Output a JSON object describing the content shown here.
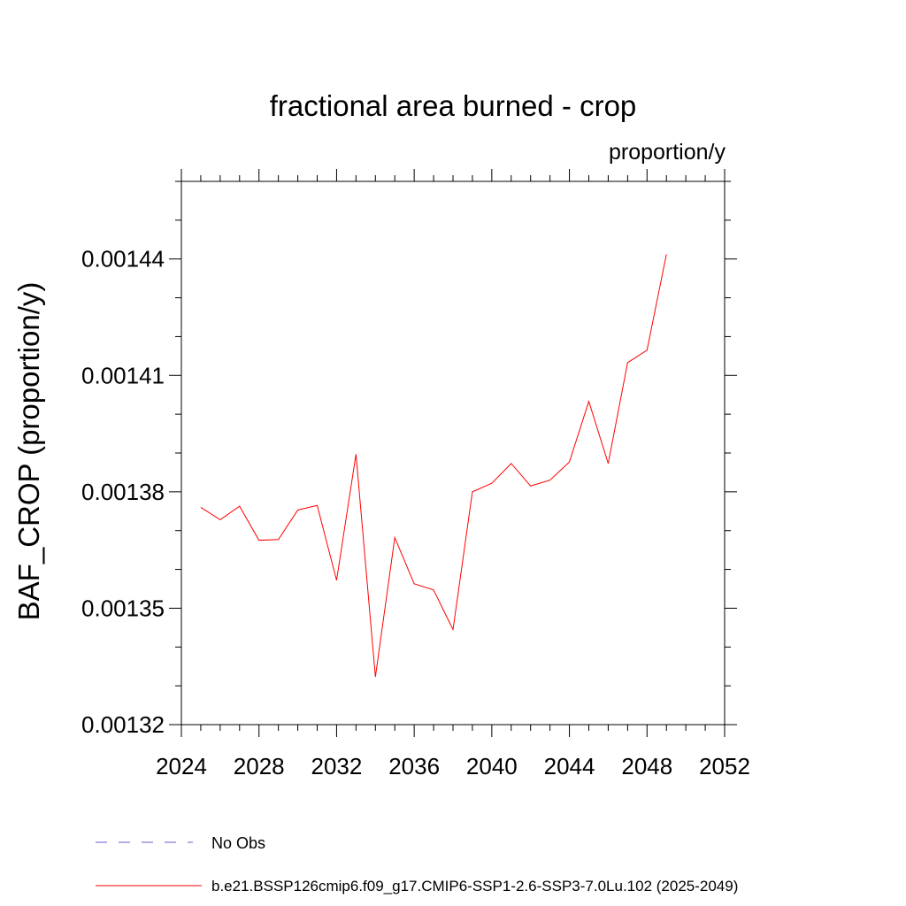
{
  "chart_data": {
    "type": "line",
    "title": "fractional area burned - crop",
    "units_label": "proportion/y",
    "ylabel": "BAF_CROP  (proportion/y)",
    "xlabel": "",
    "xlim": [
      2024,
      2052
    ],
    "ylim": [
      0.00132,
      0.00146
    ],
    "x_ticks": [
      2024,
      2028,
      2032,
      2036,
      2040,
      2044,
      2048,
      2052
    ],
    "x_tick_labels": [
      "2024",
      "2028",
      "2032",
      "2036",
      "2040",
      "2044",
      "2048",
      "2052"
    ],
    "y_ticks": [
      0.00132,
      0.00135,
      0.00138,
      0.00141,
      0.00144
    ],
    "y_tick_labels": [
      "0.00132",
      "0.00135",
      "0.00138",
      "0.00141",
      "0.00144"
    ],
    "grid": false,
    "series": [
      {
        "name": "b.e21.BSSP126cmip6.f09_g17.CMIP6-SSP1-2.6-SSP3-7.0Lu.102 (2025-2049)",
        "color": "#ff0000",
        "x": [
          2025,
          2026,
          2027,
          2028,
          2029,
          2030,
          2031,
          2032,
          2033,
          2034,
          2035,
          2036,
          2037,
          2038,
          2039,
          2040,
          2041,
          2042,
          2043,
          2044,
          2045,
          2046,
          2047,
          2048,
          2049
        ],
        "y": [
          0.001376,
          0.0013728,
          0.0013763,
          0.0013675,
          0.0013677,
          0.0013753,
          0.0013765,
          0.0013572,
          0.0013897,
          0.0013323,
          0.0013682,
          0.0013563,
          0.0013547,
          0.0013445,
          0.00138,
          0.0013822,
          0.0013873,
          0.0013815,
          0.001383,
          0.0013877,
          0.0014033,
          0.0013873,
          0.0014133,
          0.0014165,
          0.0014412
        ]
      }
    ],
    "legend": {
      "placement": "bottom",
      "entries": [
        {
          "label": "No Obs",
          "color": "#6a5acd",
          "style": "dashed"
        },
        {
          "label": "b.e21.BSSP126cmip6.f09_g17.CMIP6-SSP1-2.6-SSP3-7.0Lu.102 (2025-2049)",
          "color": "#ff0000",
          "style": "solid"
        }
      ]
    }
  }
}
